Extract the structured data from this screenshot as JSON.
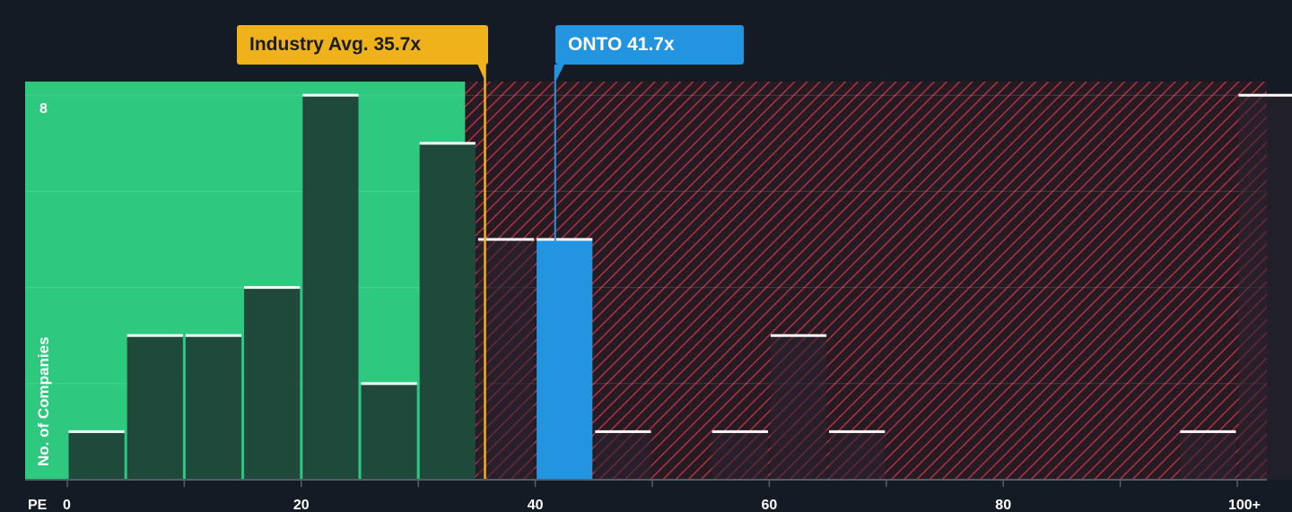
{
  "chart_data": {
    "type": "bar",
    "xlabel": "PE",
    "ylabel": "No. of Companies",
    "x_ticks": [
      "0",
      "20",
      "40",
      "60",
      "80",
      "100+"
    ],
    "y_ticks": [
      "8"
    ],
    "xlim": [
      0,
      102.5
    ],
    "ylim": [
      0,
      8.3
    ],
    "bin_width": 5,
    "bins": [
      {
        "x": 2.5,
        "value": 1
      },
      {
        "x": 7.5,
        "value": 3
      },
      {
        "x": 12.5,
        "value": 3
      },
      {
        "x": 17.5,
        "value": 4
      },
      {
        "x": 22.5,
        "value": 8
      },
      {
        "x": 27.5,
        "value": 2
      },
      {
        "x": 32.5,
        "value": 7
      },
      {
        "x": 37.5,
        "value": 5
      },
      {
        "x": 42.5,
        "value": 5,
        "highlight": true
      },
      {
        "x": 47.5,
        "value": 1
      },
      {
        "x": 57.5,
        "value": 1
      },
      {
        "x": 62.5,
        "value": 3
      },
      {
        "x": 67.5,
        "value": 1
      },
      {
        "x": 97.5,
        "value": 1
      },
      {
        "x": 102.5,
        "value": 8
      }
    ],
    "fair_zone_end": 34,
    "industry_avg": {
      "label": "Industry Avg. 35.7x",
      "value": 35.7
    },
    "company": {
      "label": "ONTO 41.7x",
      "value": 41.7
    },
    "colors": {
      "background": "#151b24",
      "fair_zone": "#2ec97e",
      "bar": "#1f4a3b",
      "highlight_bar": "#2394e0",
      "hatch": "#c8383f",
      "industry": "#f0b21b",
      "company": "#2394e0"
    }
  }
}
